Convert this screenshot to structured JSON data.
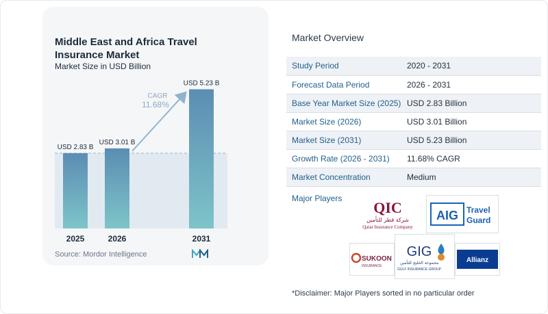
{
  "chart_data": {
    "type": "bar",
    "title": "Middle East and Africa Travel Insurance Market",
    "subtitle": "Market Size in USD Billion",
    "categories": [
      "2025",
      "2026",
      "2031"
    ],
    "values": [
      2.83,
      3.01,
      5.23
    ],
    "data_labels": [
      "USD 2.83 B",
      "USD 3.01 B",
      "USD 5.23 B"
    ],
    "cagr_label": "CAGR",
    "cagr_value": "11.68%",
    "ylim": [
      0,
      5.5
    ],
    "reference_line": 2.83,
    "colors": {
      "bar_top": "#5b8db3",
      "bar_bottom": "#7ec4c9",
      "arrow": "#8fb3cf",
      "cagr_text": "#8aa9c4"
    }
  },
  "source": "Source: Mordor Intelligence",
  "overview": {
    "title": "Market Overview",
    "rows": [
      {
        "label": "Study Period",
        "value": "2020 - 2031"
      },
      {
        "label": "Forecast Data Period",
        "value": "2026 - 2031"
      },
      {
        "label": "Base Year Market Size (2025)",
        "value": "USD 2.83 Billion"
      },
      {
        "label": "Market Size (2026)",
        "value": "USD 3.01 Billion"
      },
      {
        "label": "Market Size (2031)",
        "value": "USD 5.23 Billion"
      },
      {
        "label": "Growth Rate (2026 - 2031)",
        "value": "11.68% CAGR"
      },
      {
        "label": "Market Concentration",
        "value": "Medium"
      }
    ]
  },
  "players": {
    "title": "Major Players",
    "qic": {
      "mark": "QIC",
      "arabic": "شركة قطر للتأمين",
      "english": "Qatar Insurance Company"
    },
    "aig": {
      "mark": "AIG",
      "line1": "Travel",
      "line2": "Guard"
    },
    "sukoon": {
      "name": "SUKOON",
      "sub": "INSURANCE"
    },
    "gig": {
      "mark": "GIG",
      "arabic": "مجموعة الخليج للتأمين",
      "english": "GULF INSURANCE GROUP"
    },
    "allianz": {
      "name": "Allianz"
    }
  },
  "disclaimer": "*Disclaimer: Major Players sorted in no particular order"
}
